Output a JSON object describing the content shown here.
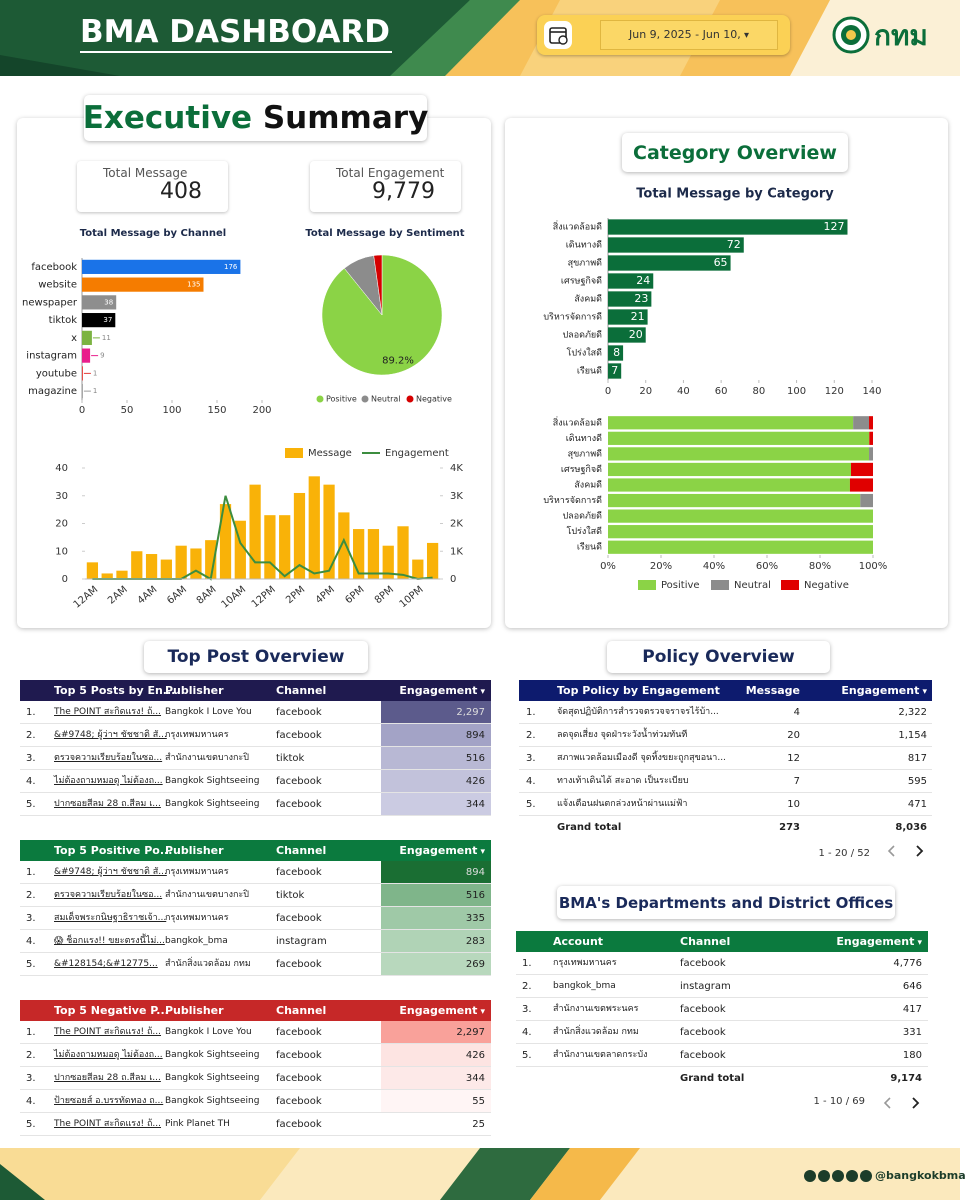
{
  "header": {
    "title": "BMA DASHBOARD",
    "date_range": "Jun 9, 2025 - Jun 10,",
    "logo_text": "กทม"
  },
  "executive_summary": {
    "title_part1": "Executive",
    "title_part2": "Summary",
    "kpis": [
      {
        "label": "Total Message",
        "value": "408"
      },
      {
        "label": "Total Engagement",
        "value": "9,779"
      }
    ]
  },
  "category_overview": {
    "title": "Category Overview"
  },
  "chart_data": [
    {
      "type": "hbar",
      "title": "Total Message by Channel",
      "categories": [
        "facebook",
        "website",
        "newspaper",
        "tiktok",
        "x",
        "instagram",
        "youtube",
        "magazine"
      ],
      "values": [
        176,
        135,
        38,
        37,
        11,
        9,
        1,
        1
      ],
      "colors": [
        "#1a73e8",
        "#f57c00",
        "#8e8e8e",
        "#000000",
        "#7cb342",
        "#e91e8c",
        "#e53935",
        "#9e9e9e"
      ],
      "xlim": [
        0,
        200
      ],
      "xticks": [
        0,
        50,
        100,
        150,
        200
      ]
    },
    {
      "type": "pie",
      "title": "Total Message by Sentiment",
      "categories": [
        "Positive",
        "Neutral",
        "Negative"
      ],
      "values": [
        89.2,
        8.6,
        2.2
      ],
      "value_labels": [
        "89.2%",
        null,
        null
      ],
      "colors": [
        "#8bd346",
        "#8c8c8c",
        "#d50000"
      ]
    },
    {
      "type": "combo",
      "categories": [
        "12AM",
        null,
        "2AM",
        null,
        "4AM",
        null,
        "6AM",
        null,
        "8AM",
        null,
        "10AM",
        null,
        "12PM",
        null,
        "2PM",
        null,
        "4PM",
        null,
        "6PM",
        null,
        "8PM",
        null,
        "10PM",
        null
      ],
      "series": [
        {
          "name": "Message",
          "color": "#f9b208",
          "values": [
            6,
            2,
            3,
            10,
            9,
            7,
            12,
            11,
            14,
            27,
            21,
            34,
            23,
            23,
            31,
            37,
            34,
            24,
            18,
            18,
            12,
            19,
            7,
            13
          ]
        },
        {
          "name": "Engagement",
          "color": "#3c8d3f",
          "kind": "line",
          "axis": "y2",
          "values": [
            0,
            0,
            0,
            0,
            0,
            0,
            0,
            300,
            0,
            3000,
            1300,
            600,
            600,
            100,
            500,
            200,
            300,
            1400,
            200,
            200,
            200,
            150,
            0,
            50
          ]
        }
      ],
      "ylim": [
        0,
        40
      ],
      "yticks": [
        0,
        10,
        20,
        30,
        40
      ],
      "y2lim": [
        0,
        4000
      ],
      "y2ticks": [
        0,
        {
          "value": 1000,
          "label": "1K"
        },
        {
          "value": 2000,
          "label": "2K"
        },
        {
          "value": 3000,
          "label": "3K"
        },
        {
          "value": 4000,
          "label": "4K"
        }
      ]
    },
    {
      "type": "hbar",
      "title": "Total Message by Category",
      "categories": [
        "สิ่งแวดล้อมดี",
        "เดินทางดี",
        "สุขภาพดี",
        "เศรษฐกิจดี",
        "สังคมดี",
        "บริหารจัดการดี",
        "ปลอดภัยดี",
        "โปร่งใสดี",
        "เรียนดี"
      ],
      "values": [
        127,
        72,
        65,
        24,
        23,
        21,
        20,
        8,
        7
      ],
      "color": "#0b6e3a",
      "xlim": [
        0,
        140
      ],
      "xticks": [
        0,
        20,
        40,
        60,
        80,
        100,
        120,
        140
      ]
    },
    {
      "type": "stacked_hbar",
      "categories": [
        "สิ่งแวดล้อมดี",
        "เดินทางดี",
        "สุขภาพดี",
        "เศรษฐกิจดี",
        "สังคมดี",
        "บริหารจัดการดี",
        "ปลอดภัยดี",
        "โปร่งใสดี",
        "เรียนดี"
      ],
      "series": [
        {
          "name": "Positive",
          "color": "#8bd346",
          "values": [
            92.5,
            98.6,
            98.5,
            91.7,
            91.3,
            95.2,
            100,
            100,
            100
          ]
        },
        {
          "name": "Neutral",
          "color": "#8c8c8c",
          "values": [
            6,
            0,
            1.5,
            0,
            0,
            4.8,
            0,
            0,
            0
          ]
        },
        {
          "name": "Negative",
          "color": "#e00000",
          "values": [
            1.5,
            1.4,
            0,
            8.3,
            8.7,
            0,
            0,
            0,
            0
          ]
        }
      ],
      "xlim": [
        0,
        100
      ],
      "xticks": [
        {
          "value": 0,
          "label": "0%"
        },
        {
          "value": 20,
          "label": "20%"
        },
        {
          "value": 40,
          "label": "40%"
        },
        {
          "value": 60,
          "label": "60%"
        },
        {
          "value": 80,
          "label": "80%"
        },
        {
          "value": 100,
          "label": "100%"
        }
      ]
    }
  ],
  "top_post_overview": {
    "title": "Top Post Overview",
    "tables": [
      {
        "header_color": "#1f1a4f",
        "columns": [
          "Top 5 Posts by En...",
          "Publisher",
          "Channel",
          "Engagement"
        ],
        "rows": [
          [
            "1.",
            "The POINT สะกิดแรง! ถ้...",
            "Bangkok I Love You",
            "facebook",
            "2,297"
          ],
          [
            "2.",
            "&#9748; ผู้ว่าฯ ชัชชาติ สั...",
            "กรุงเทพมหานคร",
            "facebook",
            "894"
          ],
          [
            "3.",
            "ตรวจความเรียบร้อยในซอ...",
            "สำนักงานเขตบางกะปิ",
            "tiktok",
            "516"
          ],
          [
            "4.",
            "ไม่ต้องถามหมอดู ไม่ต้องถ...",
            "Bangkok Sightseeing",
            "facebook",
            "426"
          ],
          [
            "5.",
            "ปากซอยสีลม 28 ถ.สีลม เ...",
            "Bangkok Sightseeing",
            "facebook",
            "344"
          ]
        ],
        "cell_colors": [
          "#5c5b8c",
          "#a3a3c6",
          "#b8b8d4",
          "#c2c2db",
          "#cbcbe2"
        ]
      },
      {
        "header_color": "#0b7a3e",
        "columns": [
          "Top 5 Positive Po...",
          "Publisher",
          "Channel",
          "Engagement"
        ],
        "rows": [
          [
            "1.",
            "&#9748; ผู้ว่าฯ ชัชชาติ สั...",
            "กรุงเทพมหานคร",
            "facebook",
            "894"
          ],
          [
            "2.",
            "ตรวจความเรียบร้อยในซอ...",
            "สำนักงานเขตบางกะปิ",
            "tiktok",
            "516"
          ],
          [
            "3.",
            "สมเด็จพระกนิษฐาธิราชเจ้า...",
            "กรุงเทพมหานคร",
            "facebook",
            "335"
          ],
          [
            "4.",
            "😱 ช็อกแรง!! ขยะตรงนี้ไม่...",
            "bangkok_bma",
            "instagram",
            "283"
          ],
          [
            "5.",
            "&#128154;&#12775...",
            "สำนักสิ่งแวดล้อม กทม",
            "facebook",
            "269"
          ]
        ],
        "cell_colors": [
          "#1a6e33",
          "#7fb58a",
          "#9fc9a7",
          "#b0d3b6",
          "#b8d8bd"
        ]
      },
      {
        "header_color": "#c62828",
        "columns": [
          "Top 5 Negative P...",
          "Publisher",
          "Channel",
          "Engagement"
        ],
        "rows": [
          [
            "1.",
            "The POINT สะกิดแรง! ถ้...",
            "Bangkok I Love You",
            "facebook",
            "2,297"
          ],
          [
            "2.",
            "ไม่ต้องถามหมอดู ไม่ต้องถ...",
            "Bangkok Sightseeing",
            "facebook",
            "426"
          ],
          [
            "3.",
            "ปากซอยสีลม 28 ถ.สีลม เ...",
            "Bangkok Sightseeing",
            "facebook",
            "344"
          ],
          [
            "4.",
            "ป้ายซอยส์ อ.บรรทัดทอง ถ...",
            "Bangkok Sightseeing",
            "facebook",
            "55"
          ],
          [
            "5.",
            "The POINT สะกิดแรง! ถ้...",
            "Pink Planet TH",
            "facebook",
            "25"
          ]
        ],
        "cell_colors": [
          "#f9a19a",
          "#fde4e2",
          "#fde9e8",
          "#fff5f5",
          "#ffffff"
        ]
      }
    ]
  },
  "policy_overview": {
    "title": "Policy Overview",
    "table": {
      "header_color": "#0d1b6e",
      "columns": [
        "Top Policy by Engagement",
        "Message",
        "Engagement"
      ],
      "rows": [
        [
          "1.",
          "จัดสุดปฏิบัติการสำรวจตรวจจราจรไร้บ้า...",
          "4",
          "2,322"
        ],
        [
          "2.",
          "ลดจุดเสี่ยง จุดฝ่าระวังน้ำท่วมทันที",
          "20",
          "1,154"
        ],
        [
          "3.",
          "สภาพแวดล้อมเมืองดี จุดทิ้งขยะถูกสุขอนา...",
          "12",
          "817"
        ],
        [
          "4.",
          "ทางเท้าเดินได้ สะอาด เป็นระเบียบ",
          "7",
          "595"
        ],
        [
          "5.",
          "แจ้งเตือนฝนตกล่วงหน้าผ่านแม่ฟ้า",
          "10",
          "471"
        ]
      ],
      "total": {
        "label": "Grand total",
        "values": [
          "273",
          "8,036"
        ]
      },
      "pagination": "1 - 20 / 52"
    }
  },
  "departments": {
    "title": "BMA's Departments and District Offices",
    "table": {
      "header_color": "#0b7a3e",
      "columns": [
        "Account",
        "Channel",
        "Engagement"
      ],
      "rows": [
        [
          "1.",
          "กรุงเทพมหานคร",
          "facebook",
          "4,776"
        ],
        [
          "2.",
          "bangkok_bma",
          "instagram",
          "646"
        ],
        [
          "3.",
          "สำนักงานเขตพระนคร",
          "facebook",
          "417"
        ],
        [
          "4.",
          "สำนักสิ่งแวดล้อม กทม",
          "facebook",
          "331"
        ],
        [
          "5.",
          "สำนักงานเขตลาดกระบัง",
          "facebook",
          "180"
        ]
      ],
      "total": {
        "label": "Grand total",
        "values": [
          "9,174"
        ]
      },
      "pagination": "1 - 10 / 69"
    }
  },
  "footer": {
    "handle": "@bangkokbma"
  }
}
